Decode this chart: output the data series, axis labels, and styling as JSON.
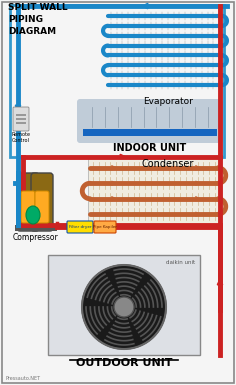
{
  "title": "SPLIT WALL\nPIPING\nDIAGRAM",
  "evaporator_label": "Evaporator",
  "indoor_label": "INDOOR UNIT",
  "condenser_label": "Condenser",
  "compressor_label": "Compressor",
  "outdoor_label": "OUTDOOR UNIT",
  "watermark": "Pressauto.NET",
  "remote_label": "Remote\nControl",
  "filter_label": "Filter dryer",
  "pipe_label": "Pipe Kapiler",
  "bg_color": "#f5f5f5",
  "blue_color": "#1a87c8",
  "red_color": "#cc2222",
  "coil_blue": "#1a87c8",
  "coil_red": "#cc4444",
  "indoor_bg": "#c8d8e8",
  "outdoor_bg": "#e0e0e0",
  "border_color": "#888888"
}
